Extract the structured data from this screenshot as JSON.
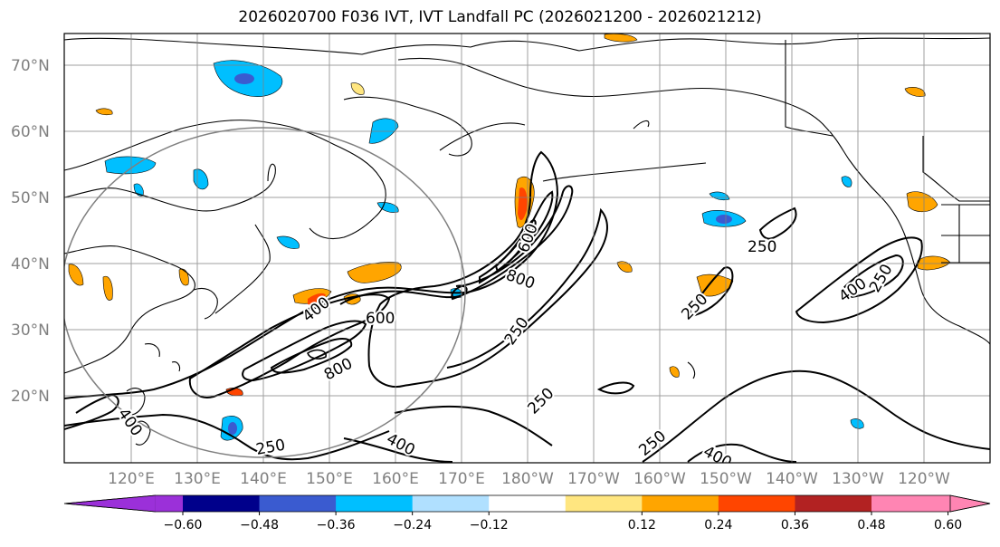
{
  "title": "2026020700 F036 IVT, IVT Landfall PC (2026021200 - 2026021212)",
  "map": {
    "lat_labels": [
      "70°N",
      "60°N",
      "50°N",
      "40°N",
      "30°N",
      "20°N"
    ],
    "lon_labels": [
      "120°E",
      "130°E",
      "140°E",
      "150°E",
      "160°E",
      "170°E",
      "180°W",
      "170°W",
      "160°W",
      "150°W",
      "140°W",
      "130°W",
      "120°W"
    ],
    "contour_levels": [
      "250",
      "400",
      "600",
      "800"
    ]
  },
  "contour_labels": [
    {
      "text": "400"
    },
    {
      "text": "600"
    },
    {
      "text": "800"
    },
    {
      "text": "600"
    },
    {
      "text": "800"
    },
    {
      "text": "250"
    },
    {
      "text": "250"
    },
    {
      "text": "250"
    },
    {
      "text": "250"
    },
    {
      "text": "400"
    },
    {
      "text": "250"
    },
    {
      "text": "400"
    },
    {
      "text": "400"
    },
    {
      "text": "250"
    },
    {
      "text": "400"
    },
    {
      "text": "250"
    },
    {
      "text": "250"
    }
  ],
  "colorbar": {
    "colors": [
      "#9b30d9",
      "#00008b",
      "#3a5bd0",
      "#00bfff",
      "#b0e0ff",
      "#ffffff",
      "#ffe680",
      "#ffa500",
      "#ff4500",
      "#b22222",
      "#ff85b3"
    ],
    "tick_labels": [
      "−0.60",
      "−0.48",
      "−0.36",
      "−0.24",
      "−0.12",
      "0.12",
      "0.24",
      "0.36",
      "0.48",
      "0.60"
    ]
  }
}
